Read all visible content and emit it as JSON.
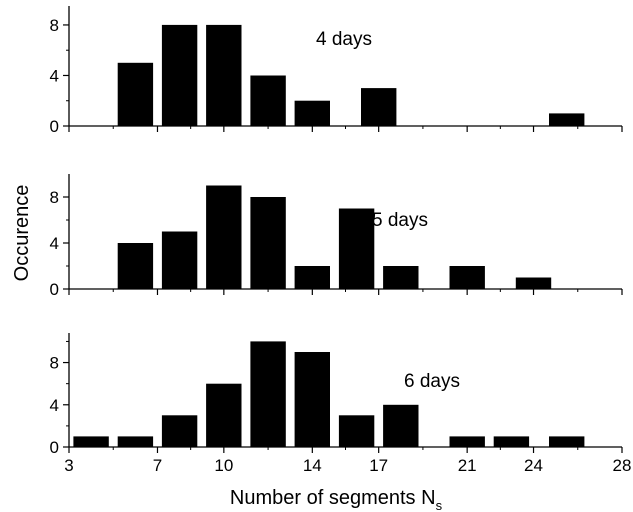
{
  "figure": {
    "ylabel": "Occurence",
    "xlabel": "Number of segments N",
    "xlabel_subscript": "s"
  },
  "colors": {
    "bar": "#000000",
    "axis": "#000000",
    "background": "#ffffff"
  },
  "chart_data": [
    {
      "type": "bar",
      "annotation": "4 days",
      "xlim": [
        3,
        28
      ],
      "ylim": [
        0,
        9.5
      ],
      "yticks": [
        0,
        4,
        8
      ],
      "x": [
        6,
        8,
        10,
        12,
        14,
        17,
        25.5
      ],
      "values": [
        5,
        8,
        8,
        4,
        2,
        3,
        1
      ]
    },
    {
      "type": "bar",
      "annotation": "5 days",
      "xlim": [
        3,
        28
      ],
      "ylim": [
        0,
        10
      ],
      "yticks": [
        0,
        4,
        8
      ],
      "x": [
        6,
        8,
        10,
        12,
        14,
        16,
        18,
        21,
        24
      ],
      "values": [
        4,
        5,
        9,
        8,
        2,
        7,
        2,
        2,
        1
      ]
    },
    {
      "type": "bar",
      "annotation": "6 days",
      "xlim": [
        3,
        28
      ],
      "ylim": [
        0,
        10.8
      ],
      "yticks": [
        0,
        4,
        8
      ],
      "xticks": [
        3,
        7,
        10,
        14,
        17,
        21,
        24,
        28
      ],
      "x": [
        4,
        6,
        8,
        10,
        12,
        14,
        16,
        18,
        21,
        23,
        25.5
      ],
      "values": [
        1,
        1,
        3,
        6,
        10,
        9,
        3,
        4,
        1,
        1,
        1
      ]
    }
  ]
}
